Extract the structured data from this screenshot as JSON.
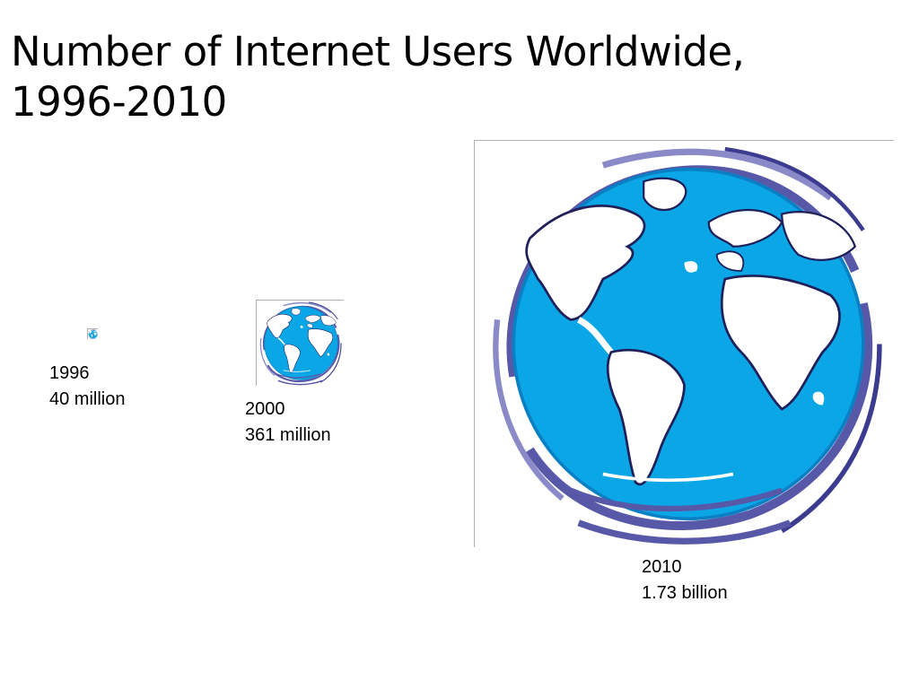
{
  "slide": {
    "title_line1": "Number of Internet Users Worldwide,",
    "title_line2": "1996-2010"
  },
  "chart_data": {
    "type": "area",
    "encoding": "globe image scaled by number of users",
    "unit": "users",
    "colors": {
      "ocean": "#0aa6e6",
      "land": "#ffffff",
      "swirl": "#5858a8",
      "outline": "#1f1f5a"
    },
    "points": [
      {
        "year": "1996",
        "label": "40 million",
        "value": 40000000
      },
      {
        "year": "2000",
        "label": "361 million",
        "value": 361000000
      },
      {
        "year": "2010",
        "label": "1.73 billion",
        "value": 1730000000
      }
    ]
  }
}
